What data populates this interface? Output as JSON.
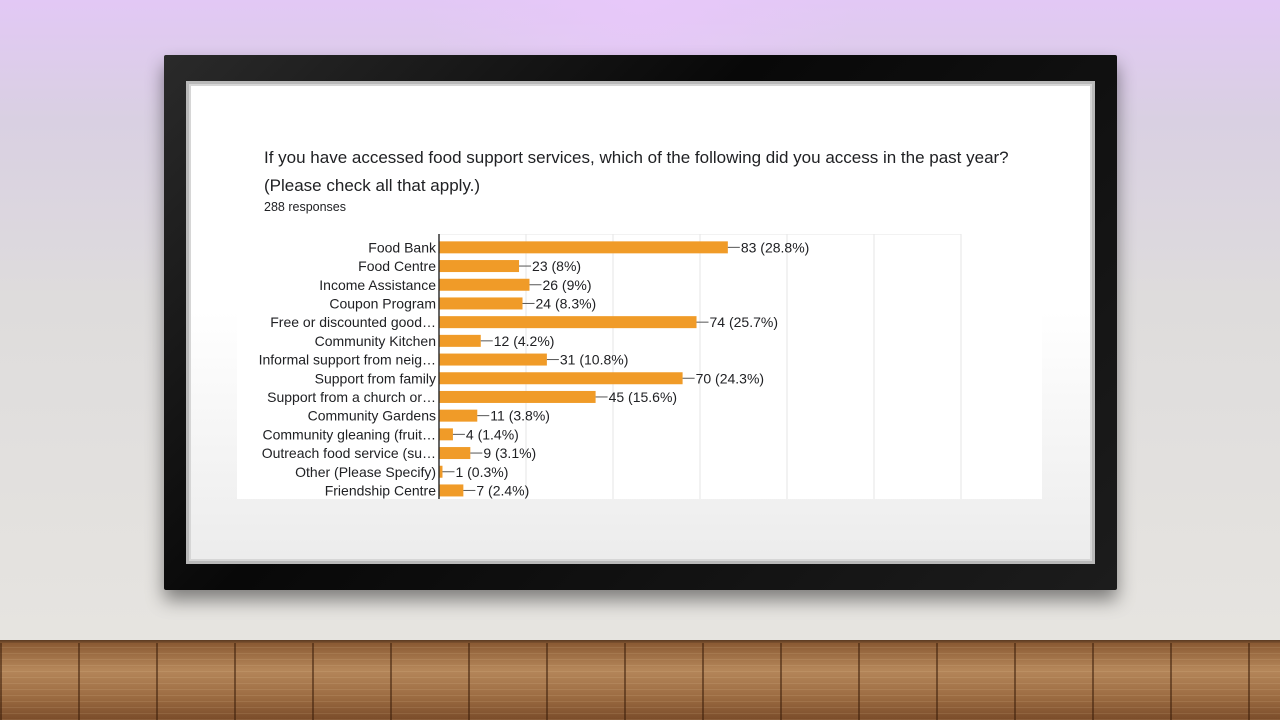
{
  "colors": {
    "bar": "#f09b28",
    "axis": "#333333",
    "grid": "#e6e6e6",
    "text": "#202124"
  },
  "question": {
    "text": "If you have accessed food support services, which of the following did you access in the past year? (Please check all that apply.)",
    "responses": "288 responses"
  },
  "chart_data": {
    "type": "bar",
    "orientation": "horizontal",
    "categories": [
      "Food Bank",
      "Food Centre",
      "Income Assistance",
      "Coupon Program",
      "Free or discounted good…",
      "Community Kitchen",
      "Informal support from neig…",
      "Support from family",
      "Support from a church or…",
      "Community Gardens",
      "Community gleaning (fruit…",
      "Outreach food service (su…",
      "Other (Please Specify)",
      "Friendship Centre"
    ],
    "values": [
      83,
      23,
      26,
      24,
      74,
      12,
      31,
      70,
      45,
      11,
      4,
      9,
      1,
      7
    ],
    "data_labels": [
      "83 (28.8%)",
      "23 (8%)",
      "26 (9%)",
      "24 (8.3%)",
      "74 (25.7%)",
      "12 (4.2%)",
      "31 (10.8%)",
      "70 (24.3%)",
      "45 (15.6%)",
      "11 (3.8%)",
      "4 (1.4%)",
      "9 (3.1%)",
      "1 (0.3%)",
      "7 (2.4%)"
    ],
    "xlim": [
      0,
      150
    ],
    "grid": true,
    "legend": "none"
  }
}
